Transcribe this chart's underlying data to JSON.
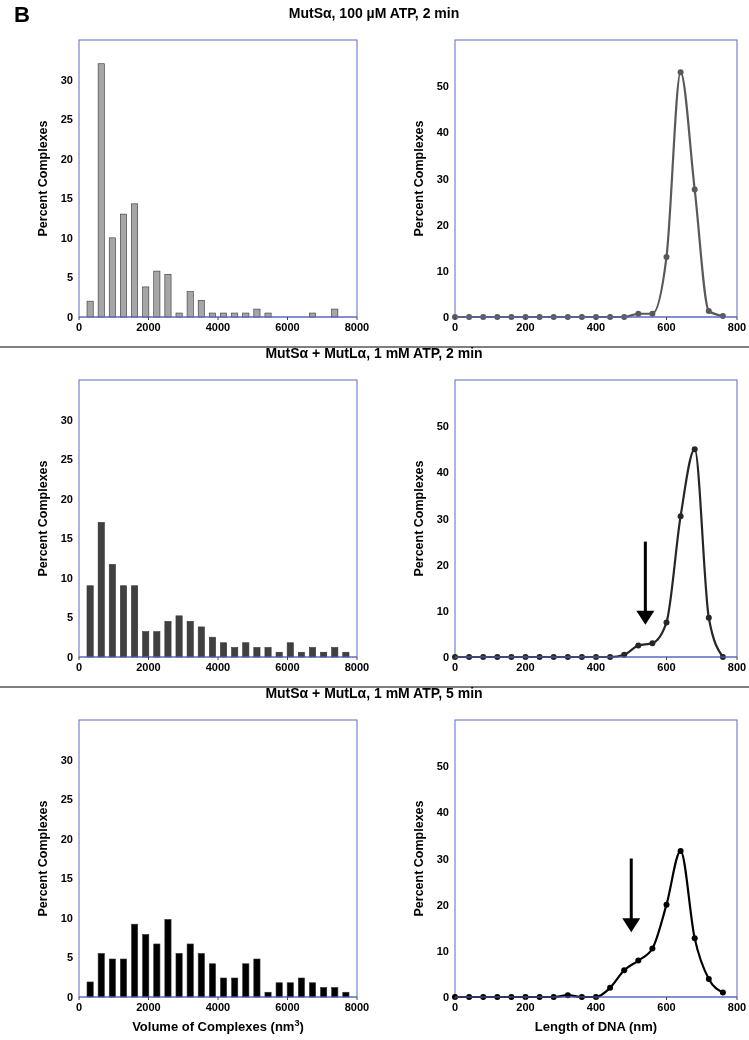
{
  "chart_data": [
    {
      "type": "histogram",
      "title": "MutSα, 100 µM ATP, 2 min",
      "annotations": [
        "B"
      ],
      "ylabel": "Percent Complexes",
      "color": "#a6a6a6",
      "bins": [
        160,
        480,
        800,
        1120,
        1440,
        1760,
        2080,
        2400,
        2720,
        3040,
        3360,
        3680,
        4000,
        4320,
        4640,
        4960,
        5280,
        5600,
        5920,
        6240,
        6560,
        6880,
        7200,
        7520,
        7840
      ],
      "values": [
        2,
        32,
        10,
        13,
        14.3,
        3.8,
        5.8,
        5.4,
        0.5,
        3.2,
        2.1,
        0.5,
        0.5,
        0.5,
        0.5,
        1,
        0.5,
        0,
        0,
        0,
        0.5,
        0,
        1,
        0
      ],
      "xlim": [
        0,
        8000
      ],
      "xticks": [
        0,
        2000,
        4000,
        6000,
        8000
      ],
      "ylim": [
        0,
        35
      ],
      "yticks": [
        0,
        5,
        10,
        15,
        20,
        25,
        30
      ]
    },
    {
      "type": "line",
      "ylabel": "Percent Complexes",
      "marker": "circle",
      "color": "#595959",
      "x": [
        0,
        40,
        80,
        120,
        160,
        200,
        240,
        280,
        320,
        360,
        400,
        440,
        480,
        520,
        560,
        600,
        640,
        680,
        720,
        760
      ],
      "values": [
        0,
        0,
        0,
        0,
        0,
        0,
        0,
        0,
        0,
        0,
        0,
        0,
        0,
        0.7,
        0.7,
        13,
        53,
        27.6,
        1.3,
        0.2
      ],
      "xlim": [
        0,
        800
      ],
      "xticks": [
        0,
        200,
        400,
        600,
        800
      ],
      "ylim": [
        0,
        60
      ],
      "yticks": [
        0,
        10,
        20,
        30,
        40,
        50
      ]
    },
    {
      "type": "histogram",
      "title": "MutSα + MutLα, 1 mM ATP, 2 min",
      "ylabel": "Percent Complexes",
      "color": "#404040",
      "bins": [
        160,
        480,
        800,
        1120,
        1440,
        1760,
        2080,
        2400,
        2720,
        3040,
        3360,
        3680,
        4000,
        4320,
        4640,
        4960,
        5280,
        5600,
        5920,
        6240,
        6560,
        6880,
        7200,
        7520,
        7840
      ],
      "values": [
        9,
        17,
        11.7,
        9,
        9,
        3.2,
        3.2,
        4.5,
        5.2,
        4.5,
        3.8,
        2.5,
        1.8,
        1.2,
        1.8,
        1.2,
        1.2,
        0.6,
        1.8,
        0.6,
        1.2,
        0.6,
        1.2,
        0.6
      ],
      "xlim": [
        0,
        8000
      ],
      "xticks": [
        0,
        2000,
        4000,
        6000,
        8000
      ],
      "ylim": [
        0,
        35
      ],
      "yticks": [
        0,
        5,
        10,
        15,
        20,
        25,
        30
      ]
    },
    {
      "type": "line",
      "ylabel": "Percent Complexes",
      "marker": "circle",
      "color": "#262626",
      "x": [
        0,
        40,
        80,
        120,
        160,
        200,
        240,
        280,
        320,
        360,
        400,
        440,
        480,
        520,
        560,
        600,
        640,
        680,
        720,
        760
      ],
      "values": [
        0,
        0,
        0,
        0,
        0,
        0,
        0,
        0,
        0,
        0,
        0,
        0,
        0.5,
        2.5,
        3,
        7.5,
        30.5,
        45,
        8.5,
        0
      ],
      "xlim": [
        0,
        800
      ],
      "xticks": [
        0,
        200,
        400,
        600,
        800
      ],
      "ylim": [
        0,
        60
      ],
      "yticks": [
        0,
        10,
        20,
        30,
        40,
        50
      ]
    },
    {
      "type": "histogram",
      "title": "MutSα + MutLα, 1 mM ATP, 5 min",
      "xlabel": "Volume of Complexes (nm$^{3}$)",
      "ylabel": "Percent Complexes",
      "color": "#000000",
      "bins": [
        160,
        480,
        800,
        1120,
        1440,
        1760,
        2080,
        2400,
        2720,
        3040,
        3360,
        3680,
        4000,
        4320,
        4640,
        4960,
        5280,
        5600,
        5920,
        6240,
        6560,
        6880,
        7200,
        7520,
        7840
      ],
      "values": [
        1.9,
        5.5,
        4.8,
        4.8,
        9.2,
        7.9,
        6.7,
        9.8,
        5.5,
        6.7,
        5.5,
        4.2,
        2.4,
        2.4,
        4.2,
        4.8,
        0.6,
        1.8,
        1.8,
        2.4,
        1.8,
        1.2,
        1.2,
        0.6
      ],
      "xlim": [
        0,
        8000
      ],
      "xticks": [
        0,
        2000,
        4000,
        6000,
        8000
      ],
      "ylim": [
        0,
        35
      ],
      "yticks": [
        0,
        5,
        10,
        15,
        20,
        25,
        30
      ]
    },
    {
      "type": "line",
      "xlabel": "Length of DNA (nm)",
      "ylabel": "Percent Complexes",
      "marker": "circle",
      "color": "#000000",
      "x": [
        0,
        40,
        80,
        120,
        160,
        200,
        240,
        280,
        320,
        360,
        400,
        440,
        480,
        520,
        560,
        600,
        640,
        680,
        720,
        760
      ],
      "values": [
        0,
        0,
        0,
        0,
        0,
        0,
        0,
        0,
        0.4,
        0,
        0,
        2,
        5.8,
        7.9,
        10.5,
        20,
        31.6,
        12.7,
        3.9,
        1
      ],
      "xlim": [
        0,
        800
      ],
      "xticks": [
        0,
        200,
        400,
        600,
        800
      ],
      "ylim": [
        0,
        60
      ],
      "yticks": [
        0,
        10,
        20,
        30,
        40,
        50
      ]
    }
  ]
}
